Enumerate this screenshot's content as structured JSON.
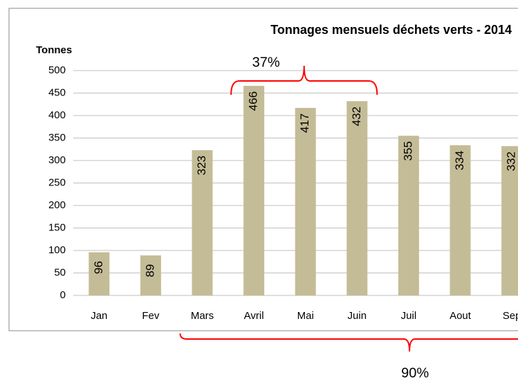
{
  "chart_data": {
    "type": "bar",
    "title": "Tonnages mensuels déchets verts - 2014",
    "y_label": "Tonnes",
    "categories": [
      "Jan",
      "Fev",
      "Mars",
      "Avril",
      "Mai",
      "Juin",
      "Juil",
      "Aout",
      "Sep"
    ],
    "values": [
      96,
      89,
      323,
      466,
      417,
      432,
      355,
      334,
      332
    ],
    "color": "#c4bc96",
    "ylim": [
      0,
      500
    ],
    "yticks": [
      0,
      50,
      100,
      150,
      200,
      250,
      300,
      350,
      400,
      450,
      500
    ],
    "grid": true,
    "annotations": [
      {
        "text": "37%",
        "from": "Avril",
        "to": "Juin",
        "position": "top",
        "color": "#ff0000"
      },
      {
        "text": "90%",
        "from": "Mars",
        "to": "Sep",
        "position": "bottom",
        "color": "#ff0000"
      }
    ]
  }
}
